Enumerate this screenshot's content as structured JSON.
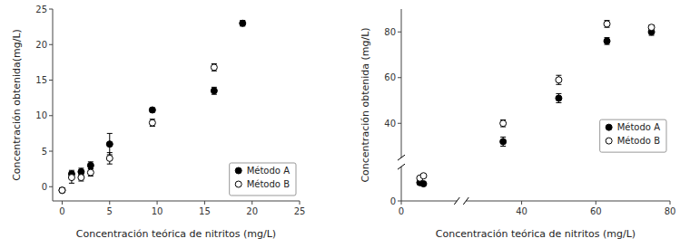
{
  "chart_data": [
    {
      "type": "scatter",
      "xlabel": "Concentración teórica de nitritos (mg/L)",
      "ylabel": "Concentración obtenida(mg/L)",
      "xlim": [
        -1,
        25
      ],
      "ylim": [
        -2,
        25
      ],
      "xticks": [
        0,
        5,
        10,
        15,
        20,
        25
      ],
      "yticks": [
        0,
        5,
        10,
        15,
        20,
        25
      ],
      "grid": false,
      "legend": "lower-right",
      "series": [
        {
          "name": "Método A",
          "color": "#000000",
          "marker": "filled-circle",
          "x": [
            0,
            1,
            2,
            3,
            5,
            9.5,
            16,
            19
          ],
          "values": [
            -0.5,
            1.8,
            2.1,
            3.0,
            6.0,
            10.8,
            13.5,
            23.0
          ],
          "errors": [
            0.3,
            0.5,
            0.5,
            0.5,
            1.5,
            0.3,
            0.5,
            0.4
          ]
        },
        {
          "name": "Método B",
          "color": "#000000",
          "marker": "open-circle",
          "x": [
            0,
            1,
            2,
            3,
            5,
            9.5,
            16
          ],
          "values": [
            -0.5,
            1.3,
            1.3,
            2.0,
            4.0,
            9.0,
            16.8
          ],
          "errors": [
            0.3,
            0.8,
            0.5,
            0.5,
            0.8,
            0.5,
            0.5
          ]
        }
      ]
    },
    {
      "type": "scatter",
      "xlabel": "Concentración teórica de nitritos (mg/L)",
      "ylabel": "Concentración obtenida (mg/L)",
      "xlim": [
        [
          0,
          15
        ],
        [
          25,
          80
        ]
      ],
      "ylim": [
        [
          0,
          15
        ],
        [
          25,
          90
        ]
      ],
      "xticks": [
        0,
        40,
        60,
        80
      ],
      "yticks": [
        0,
        40,
        60,
        80
      ],
      "grid": false,
      "legend": "lower-right",
      "series": [
        {
          "name": "Método A",
          "color": "#000000",
          "marker": "filled-circle",
          "x": [
            5.0,
            6.0,
            35,
            50,
            63,
            75
          ],
          "values": [
            8.0,
            7.5,
            32.0,
            51.0,
            76.0,
            80.0
          ],
          "errors": [
            0.5,
            0.5,
            2.0,
            2.0,
            1.5,
            1.5
          ]
        },
        {
          "name": "Método B",
          "color": "#000000",
          "marker": "open-circle",
          "x": [
            5.0,
            6.0,
            35,
            50,
            63,
            75
          ],
          "values": [
            10.0,
            11.0,
            40.0,
            59.0,
            83.5,
            82.0
          ],
          "errors": [
            0.5,
            0.5,
            1.5,
            2.0,
            1.5,
            1.0
          ]
        }
      ]
    }
  ]
}
